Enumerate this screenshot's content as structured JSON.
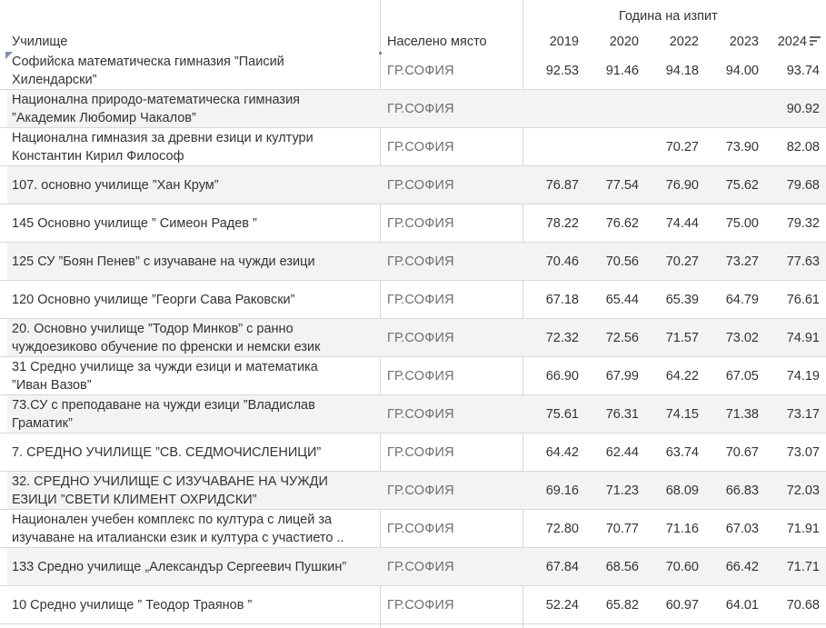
{
  "chart_data": {
    "type": "table",
    "header": {
      "school": "Училище",
      "place": "Населено място",
      "group": "Година на изпит"
    },
    "years": [
      "2019",
      "2020",
      "2022",
      "2023",
      "2024"
    ],
    "sorted_by": "2024",
    "sort_order": "descending",
    "rows": [
      {
        "lines": [
          "Софийска математическа гимназия ”Паисий",
          "Хилендарски”"
        ],
        "place": "ГР.СОФИЯ",
        "values": [
          "92.53",
          "91.46",
          "94.18",
          "94.00",
          "93.74"
        ]
      },
      {
        "lines": [
          "Национална природо-математическа гимназия",
          "”Академик Любомир Чакалов”"
        ],
        "place": "ГР.СОФИЯ",
        "values": [
          "",
          "",
          "",
          "",
          "90.92"
        ]
      },
      {
        "lines": [
          "Национална гимназия за древни езици и култури",
          "Константин Кирил Философ"
        ],
        "place": "ГР.СОФИЯ",
        "values": [
          "",
          "",
          "70.27",
          "73.90",
          "82.08"
        ]
      },
      {
        "lines": [
          "107. основно училище ”Хан Крум”"
        ],
        "place": "ГР.СОФИЯ",
        "values": [
          "76.87",
          "77.54",
          "76.90",
          "75.62",
          "79.68"
        ]
      },
      {
        "lines": [
          "145 Основно училище ” Симеон Радев ”"
        ],
        "place": "ГР.СОФИЯ",
        "values": [
          "78.22",
          "76.62",
          "74.44",
          "75.00",
          "79.32"
        ]
      },
      {
        "lines": [
          "125 СУ ”Боян Пенев” с изучаване на чужди езици"
        ],
        "place": "ГР.СОФИЯ",
        "values": [
          "70.46",
          "70.56",
          "70.27",
          "73.27",
          "77.63"
        ]
      },
      {
        "lines": [
          "120 Основно училище ”Георги Сава Раковски”"
        ],
        "place": "ГР.СОФИЯ",
        "values": [
          "67.18",
          "65.44",
          "65.39",
          "64.79",
          "76.61"
        ]
      },
      {
        "lines": [
          "20. Основно училище ”Тодор Минков” с ранно",
          "чуждоезиково обучение по френски и немски език"
        ],
        "place": "ГР.СОФИЯ",
        "values": [
          "72.32",
          "72.56",
          "71.57",
          "73.02",
          "74.91"
        ]
      },
      {
        "lines": [
          "31 Средно училище за чужди езици и математика",
          "”Иван Вазов”"
        ],
        "place": "ГР.СОФИЯ",
        "values": [
          "66.90",
          "67.99",
          "64.22",
          "67.05",
          "74.19"
        ]
      },
      {
        "lines": [
          "73.СУ с преподаване на чужди езици ”Владислав",
          "Граматик”"
        ],
        "place": "ГР.СОФИЯ",
        "values": [
          "75.61",
          "76.31",
          "74.15",
          "71.38",
          "73.17"
        ]
      },
      {
        "lines": [
          "7. СРЕДНО УЧИЛИЩЕ ”СВ. СЕДМОЧИСЛЕНИЦИ”"
        ],
        "place": "ГР.СОФИЯ",
        "values": [
          "64.42",
          "62.44",
          "63.74",
          "70.67",
          "73.07"
        ]
      },
      {
        "lines": [
          "32. СРЕДНО УЧИЛИЩЕ С ИЗУЧАВАНЕ НА ЧУЖДИ",
          "ЕЗИЦИ ”СВЕТИ КЛИМЕНТ ОХРИДСКИ”"
        ],
        "place": "ГР.СОФИЯ",
        "values": [
          "69.16",
          "71.23",
          "68.09",
          "66.83",
          "72.03"
        ]
      },
      {
        "lines": [
          "Национален учебен комплекс по култура с лицей за",
          "изучаване на италиански език и култура с участието .."
        ],
        "place": "ГР.СОФИЯ",
        "values": [
          "72.80",
          "70.77",
          "71.16",
          "67.03",
          "71.91"
        ]
      },
      {
        "lines": [
          "133 Средно училище „Александър Сергеевич Пушкин”"
        ],
        "place": "ГР.СОФИЯ",
        "values": [
          "67.84",
          "68.56",
          "70.60",
          "66.42",
          "71.71"
        ]
      },
      {
        "lines": [
          "10 Средно училище ” Теодор Траянов ”"
        ],
        "place": "ГР.СОФИЯ",
        "values": [
          "52.24",
          "65.82",
          "60.97",
          "64.01",
          "70.68"
        ]
      }
    ]
  },
  "icons": {
    "sort": "sort-descending-icon"
  }
}
